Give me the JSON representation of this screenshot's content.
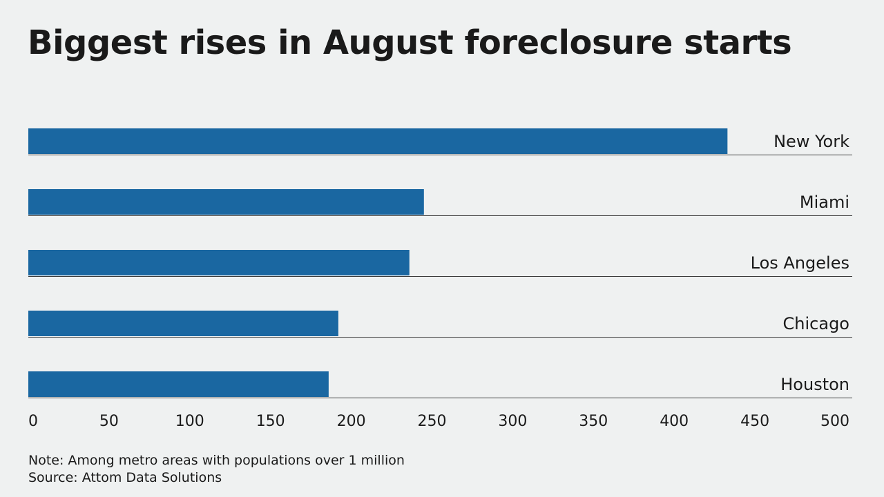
{
  "title": "Biggest rises in August foreclosure starts",
  "note": "Note: Among metro areas with populations over 1 million",
  "source": "Source: Attom Data Solutions",
  "colors": {
    "bar": "#1a67a1",
    "rule": "#3a3a3a",
    "background": "#eff1f1"
  },
  "chart_data": {
    "type": "bar",
    "orientation": "horizontal",
    "categories": [
      "New York",
      "Miami",
      "Los Angeles",
      "Chicago",
      "Houston"
    ],
    "values": [
      433,
      245,
      236,
      192,
      186
    ],
    "xlim": [
      0,
      500
    ],
    "xticks": [
      0,
      50,
      100,
      150,
      200,
      250,
      300,
      350,
      400,
      450,
      500
    ],
    "title": "Biggest rises in August foreclosure starts",
    "xlabel": "",
    "ylabel": "",
    "grid": false,
    "legend": "none",
    "category_label_position": "right"
  }
}
